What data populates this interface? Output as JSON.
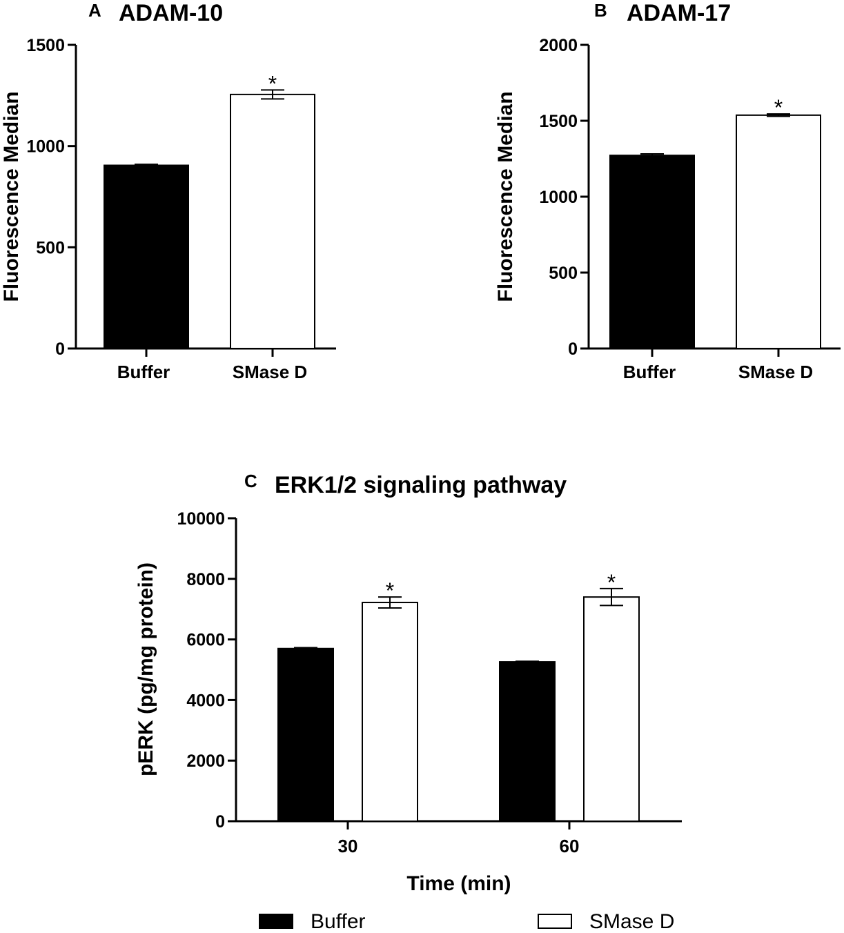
{
  "chart_data": [
    {
      "type": "bar",
      "panel": "A",
      "title": "ADAM-10",
      "ylabel": "Fluorescence Median",
      "xlabel": "",
      "ylim": [
        0,
        1500
      ],
      "yticks": [
        0,
        500,
        1000,
        1500
      ],
      "categories": [
        "Buffer",
        "SMase D"
      ],
      "values": [
        905,
        1255
      ],
      "errors": [
        5,
        22
      ],
      "colors": [
        "#000000",
        "#ffffff"
      ],
      "annotations": [
        "",
        "*"
      ]
    },
    {
      "type": "bar",
      "panel": "B",
      "title": "ADAM-17",
      "ylabel": "Fluorescence Median",
      "xlabel": "",
      "ylim": [
        0,
        2000
      ],
      "yticks": [
        0,
        500,
        1000,
        1500,
        2000
      ],
      "categories": [
        "Buffer",
        "SMase D"
      ],
      "values": [
        1272,
        1537
      ],
      "errors": [
        10,
        8
      ],
      "colors": [
        "#000000",
        "#ffffff"
      ],
      "annotations": [
        "",
        "*"
      ]
    },
    {
      "type": "bar",
      "panel": "C",
      "title": "ERK1/2 signaling pathway",
      "ylabel": "pERK (pg/mg protein)",
      "xlabel": "Time (min)",
      "ylim": [
        0,
        10000
      ],
      "yticks": [
        0,
        2000,
        4000,
        6000,
        8000,
        10000
      ],
      "categories": [
        "30",
        "60"
      ],
      "series": [
        {
          "name": "Buffer",
          "values": [
            5700,
            5260
          ],
          "errors": [
            30,
            20
          ],
          "color": "#000000",
          "annotations": [
            "",
            ""
          ]
        },
        {
          "name": "SMase D",
          "values": [
            7220,
            7400
          ],
          "errors": [
            180,
            280
          ],
          "color": "#ffffff",
          "annotations": [
            "*",
            "*"
          ]
        }
      ],
      "legend": "bottom"
    }
  ]
}
